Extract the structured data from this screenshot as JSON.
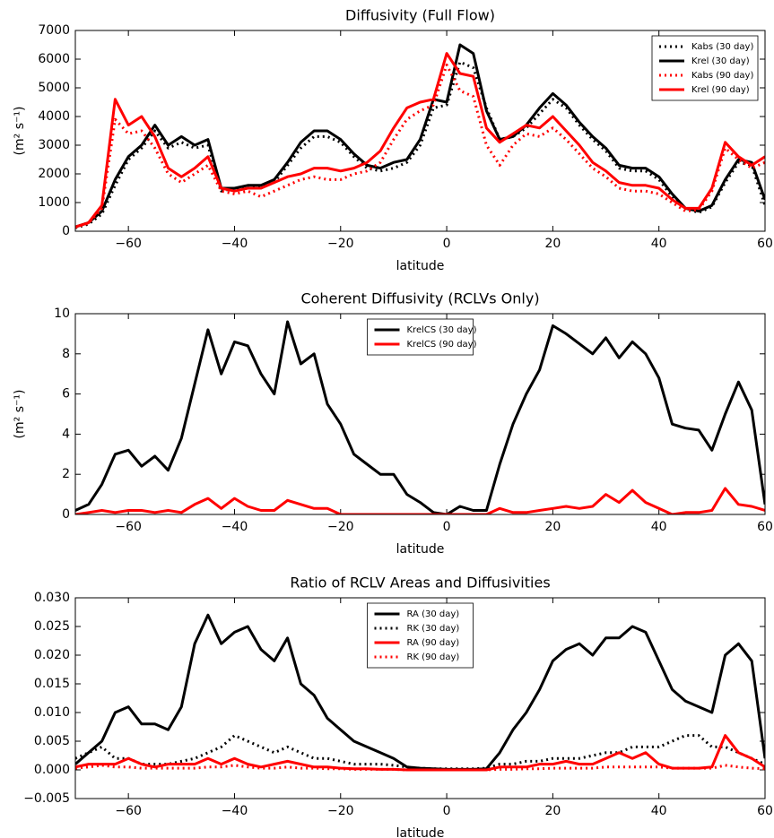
{
  "chart_data": [
    {
      "type": "line",
      "title": "Diffusivity (Full Flow)",
      "x_label": "latitude",
      "y_label": "(m² s⁻¹)",
      "legend": "upper right",
      "x": [
        -70,
        -67.5,
        -65,
        -62.5,
        -60,
        -57.5,
        -55,
        -52.5,
        -50,
        -47.5,
        -45,
        -42.5,
        -40,
        -37.5,
        -35,
        -32.5,
        -30,
        -27.5,
        -25,
        -22.5,
        -20,
        -17.5,
        -15,
        -12.5,
        -10,
        -7.5,
        -5,
        -2.5,
        0,
        2.5,
        5,
        7.5,
        10,
        12.5,
        15,
        17.5,
        20,
        22.5,
        25,
        27.5,
        30,
        32.5,
        35,
        37.5,
        40,
        42.5,
        45,
        47.5,
        50,
        52.5,
        55,
        57.5,
        60
      ],
      "xlim": [
        -70,
        60
      ],
      "xticks": [
        {
          "value": -60,
          "label": "−60"
        },
        {
          "value": -40,
          "label": "−40"
        },
        {
          "value": -20,
          "label": "−20"
        },
        0,
        20,
        40,
        60
      ],
      "ylim": [
        0,
        7000
      ],
      "yticks": [
        0,
        1000,
        2000,
        3000,
        4000,
        5000,
        6000,
        7000
      ],
      "series": [
        {
          "name": "Kabs (30 day)",
          "color": "#000000",
          "linestyle": "dotted",
          "values": [
            120,
            250,
            600,
            1600,
            2500,
            2900,
            3500,
            2900,
            3100,
            2900,
            3000,
            1400,
            1500,
            1500,
            1600,
            1700,
            2300,
            2900,
            3300,
            3300,
            3100,
            2600,
            2200,
            2100,
            2200,
            2400,
            3000,
            4300,
            4400,
            5900,
            5700,
            4300,
            3200,
            3300,
            3600,
            4100,
            4600,
            4300,
            3700,
            3200,
            2800,
            2200,
            2100,
            2100,
            1800,
            1200,
            800,
            650,
            850,
            1700,
            2400,
            2300,
            900
          ]
        },
        {
          "name": "Krel (30 day)",
          "color": "#000000",
          "linestyle": "solid",
          "values": [
            150,
            300,
            700,
            1800,
            2600,
            3000,
            3700,
            3000,
            3300,
            3000,
            3200,
            1500,
            1500,
            1600,
            1600,
            1800,
            2400,
            3100,
            3500,
            3500,
            3200,
            2700,
            2300,
            2200,
            2400,
            2500,
            3200,
            4600,
            4500,
            6500,
            6200,
            4200,
            3200,
            3300,
            3700,
            4300,
            4800,
            4400,
            3800,
            3300,
            2900,
            2300,
            2200,
            2200,
            1900,
            1300,
            800,
            700,
            900,
            1800,
            2500,
            2400,
            1100
          ]
        },
        {
          "name": "Kabs (90 day)",
          "color": "#ff0000",
          "linestyle": "dotted",
          "values": [
            130,
            280,
            800,
            3900,
            3400,
            3500,
            2900,
            2000,
            1700,
            2000,
            2300,
            1400,
            1300,
            1400,
            1200,
            1400,
            1600,
            1800,
            1900,
            1800,
            1800,
            2000,
            2100,
            2400,
            3200,
            3900,
            4200,
            4400,
            5800,
            4900,
            4700,
            3000,
            2300,
            3000,
            3400,
            3300,
            3600,
            3200,
            2700,
            2200,
            1900,
            1500,
            1400,
            1400,
            1300,
            1000,
            700,
            750,
            1400,
            2900,
            2500,
            2200,
            2400
          ]
        },
        {
          "name": "Krel (90 day)",
          "color": "#ff0000",
          "linestyle": "solid",
          "values": [
            150,
            300,
            900,
            4600,
            3700,
            4000,
            3300,
            2200,
            1900,
            2200,
            2600,
            1500,
            1400,
            1500,
            1500,
            1700,
            1900,
            2000,
            2200,
            2200,
            2100,
            2200,
            2400,
            2800,
            3600,
            4300,
            4500,
            4600,
            6200,
            5500,
            5400,
            3600,
            3100,
            3400,
            3700,
            3600,
            4000,
            3500,
            3000,
            2400,
            2100,
            1700,
            1600,
            1600,
            1500,
            1100,
            800,
            800,
            1500,
            3100,
            2600,
            2300,
            2600
          ]
        }
      ]
    },
    {
      "type": "line",
      "title": "Coherent Diffusivity (RCLVs Only)",
      "x_label": "latitude",
      "y_label": "(m² s⁻¹)",
      "legend": "upper center",
      "x": [
        -70,
        -67.5,
        -65,
        -62.5,
        -60,
        -57.5,
        -55,
        -52.5,
        -50,
        -47.5,
        -45,
        -42.5,
        -40,
        -37.5,
        -35,
        -32.5,
        -30,
        -27.5,
        -25,
        -22.5,
        -20,
        -17.5,
        -15,
        -12.5,
        -10,
        -7.5,
        -5,
        -2.5,
        0,
        2.5,
        5,
        7.5,
        10,
        12.5,
        15,
        17.5,
        20,
        22.5,
        25,
        27.5,
        30,
        32.5,
        35,
        37.5,
        40,
        42.5,
        45,
        47.5,
        50,
        52.5,
        55,
        57.5,
        60
      ],
      "xlim": [
        -70,
        60
      ],
      "xticks": [
        {
          "value": -60,
          "label": "−60"
        },
        {
          "value": -40,
          "label": "−40"
        },
        {
          "value": -20,
          "label": "−20"
        },
        0,
        20,
        40,
        60
      ],
      "ylim": [
        0,
        10
      ],
      "yticks": [
        0,
        2,
        4,
        6,
        8,
        10
      ],
      "series": [
        {
          "name": "KrelCS (30 day)",
          "color": "#000000",
          "linestyle": "solid",
          "values": [
            0.2,
            0.5,
            1.5,
            3.0,
            3.2,
            2.4,
            2.9,
            2.2,
            3.8,
            6.5,
            9.2,
            7.0,
            8.6,
            8.4,
            7.0,
            6.0,
            9.6,
            7.5,
            8.0,
            5.5,
            4.5,
            3.0,
            2.5,
            2.0,
            2.0,
            1.0,
            0.6,
            0.1,
            0,
            0.4,
            0.2,
            0.2,
            2.5,
            4.5,
            6.0,
            7.2,
            9.4,
            9.0,
            8.5,
            8.0,
            8.8,
            7.8,
            8.6,
            8.0,
            6.8,
            4.5,
            4.3,
            4.2,
            3.2,
            5.0,
            6.6,
            5.2,
            0.5
          ]
        },
        {
          "name": "KrelCS (90 day)",
          "color": "#ff0000",
          "linestyle": "solid",
          "values": [
            0,
            0.1,
            0.2,
            0.1,
            0.2,
            0.2,
            0.1,
            0.2,
            0.1,
            0.5,
            0.8,
            0.3,
            0.8,
            0.4,
            0.2,
            0.2,
            0.7,
            0.5,
            0.3,
            0.3,
            0,
            0,
            0,
            0,
            0,
            0,
            0,
            0,
            0,
            0,
            0,
            0,
            0.3,
            0.1,
            0.1,
            0.2,
            0.3,
            0.4,
            0.3,
            0.4,
            1.0,
            0.6,
            1.2,
            0.6,
            0.3,
            0,
            0.1,
            0.1,
            0.2,
            1.3,
            0.5,
            0.4,
            0.2
          ]
        }
      ]
    },
    {
      "type": "line",
      "title": "Ratio of RCLV Areas and Diffusivities",
      "x_label": "latitude",
      "legend": "upper center",
      "x": [
        -70,
        -67.5,
        -65,
        -62.5,
        -60,
        -57.5,
        -55,
        -52.5,
        -50,
        -47.5,
        -45,
        -42.5,
        -40,
        -37.5,
        -35,
        -32.5,
        -30,
        -27.5,
        -25,
        -22.5,
        -20,
        -17.5,
        -15,
        -12.5,
        -10,
        -7.5,
        -5,
        -2.5,
        0,
        2.5,
        5,
        7.5,
        10,
        12.5,
        15,
        17.5,
        20,
        22.5,
        25,
        27.5,
        30,
        32.5,
        35,
        37.5,
        40,
        42.5,
        45,
        47.5,
        50,
        52.5,
        55,
        57.5,
        60
      ],
      "xlim": [
        -70,
        60
      ],
      "xticks": [
        {
          "value": -60,
          "label": "−60"
        },
        {
          "value": -40,
          "label": "−40"
        },
        {
          "value": -20,
          "label": "−20"
        },
        0,
        20,
        40,
        60
      ],
      "ylim": [
        -0.005,
        0.03
      ],
      "yticks": [
        {
          "value": -0.005,
          "label": "−0.005"
        },
        {
          "value": 0,
          "label": "0.000"
        },
        {
          "value": 0.005,
          "label": "0.005"
        },
        {
          "value": 0.01,
          "label": "0.010"
        },
        {
          "value": 0.015,
          "label": "0.015"
        },
        {
          "value": 0.02,
          "label": "0.020"
        },
        {
          "value": 0.025,
          "label": "0.025"
        },
        {
          "value": 0.03,
          "label": "0.030"
        }
      ],
      "series": [
        {
          "name": "RA (30 day)",
          "color": "#000000",
          "linestyle": "solid",
          "values": [
            0.001,
            0.003,
            0.005,
            0.01,
            0.011,
            0.008,
            0.008,
            0.007,
            0.011,
            0.022,
            0.027,
            0.022,
            0.024,
            0.025,
            0.021,
            0.019,
            0.023,
            0.015,
            0.013,
            0.009,
            0.007,
            0.005,
            0.004,
            0.003,
            0.002,
            0.0005,
            0.0003,
            0.0002,
            0.0001,
            0.0001,
            0.0001,
            0.0002,
            0.003,
            0.007,
            0.01,
            0.014,
            0.019,
            0.021,
            0.022,
            0.02,
            0.023,
            0.023,
            0.025,
            0.024,
            0.019,
            0.014,
            0.012,
            0.011,
            0.01,
            0.02,
            0.022,
            0.019,
            0.002
          ]
        },
        {
          "name": "RK (30 day)",
          "color": "#000000",
          "linestyle": "dotted",
          "values": [
            0.002,
            0.003,
            0.004,
            0.002,
            0.002,
            0.001,
            0.001,
            0.001,
            0.0015,
            0.002,
            0.003,
            0.004,
            0.006,
            0.005,
            0.004,
            0.003,
            0.004,
            0.003,
            0.002,
            0.002,
            0.0015,
            0.001,
            0.001,
            0.001,
            0.0008,
            0.0005,
            0.0003,
            0.0002,
            0.0002,
            0.0002,
            0.0002,
            0.0003,
            0.001,
            0.001,
            0.0015,
            0.0015,
            0.002,
            0.002,
            0.002,
            0.0025,
            0.003,
            0.003,
            0.004,
            0.004,
            0.004,
            0.005,
            0.006,
            0.006,
            0.004,
            0.004,
            0.003,
            0.002,
            0.001
          ]
        },
        {
          "name": "RA (90 day)",
          "color": "#ff0000",
          "linestyle": "solid",
          "values": [
            0.0005,
            0.001,
            0.001,
            0.001,
            0.002,
            0.001,
            0.0005,
            0.001,
            0.001,
            0.001,
            0.002,
            0.001,
            0.002,
            0.001,
            0.0005,
            0.001,
            0.0015,
            0.001,
            0.0005,
            0.0005,
            0.0003,
            0.0002,
            0.0002,
            0.0001,
            0.0001,
            0,
            0,
            0,
            0,
            0,
            0,
            0,
            0.0005,
            0.0005,
            0.0005,
            0.001,
            0.001,
            0.0015,
            0.001,
            0.001,
            0.002,
            0.003,
            0.002,
            0.003,
            0.001,
            0.0003,
            0.0003,
            0.0003,
            0.0005,
            0.006,
            0.003,
            0.002,
            0.0005
          ]
        },
        {
          "name": "RK (90 day)",
          "color": "#ff0000",
          "linestyle": "dotted",
          "values": [
            0.0003,
            0.0005,
            0.0008,
            0.0005,
            0.0005,
            0.0003,
            0.0003,
            0.0003,
            0.0003,
            0.0003,
            0.0005,
            0.0005,
            0.0008,
            0.0005,
            0.0003,
            0.0003,
            0.0005,
            0.0003,
            0.0003,
            0.0002,
            0.0002,
            0.0001,
            0.0001,
            0.0001,
            0.0001,
            0,
            0,
            0,
            0,
            0,
            0,
            0,
            0.0001,
            0.0001,
            0.0002,
            0.0002,
            0.0003,
            0.0003,
            0.0003,
            0.0003,
            0.0005,
            0.0005,
            0.0005,
            0.0005,
            0.0005,
            0.0003,
            0.0003,
            0.0003,
            0.0003,
            0.0008,
            0.0005,
            0.0003,
            0.0002
          ]
        }
      ]
    }
  ]
}
